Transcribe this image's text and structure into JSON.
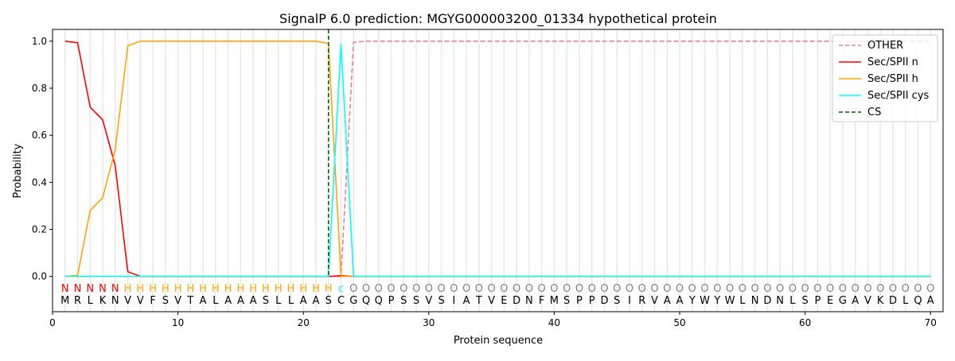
{
  "chart_data": {
    "type": "line",
    "title": "SignalP 6.0 prediction: MGYG000003200_01334 hypothetical protein",
    "xlabel": "Protein sequence",
    "ylabel": "Probability",
    "xlim": [
      0,
      71
    ],
    "ylim": [
      -0.15,
      1.05
    ],
    "xticks": [
      0,
      10,
      20,
      30,
      40,
      50,
      60,
      70
    ],
    "yticks": [
      0.0,
      0.2,
      0.4,
      0.6,
      0.8,
      1.0
    ],
    "ytick_labels": [
      "0.0",
      "0.2",
      "0.4",
      "0.6",
      "0.8",
      "1.0"
    ],
    "grid": "vertical lines at each residue",
    "legend_position": "top-right",
    "sequence": "MRLKNVVFSVTALAAASLLAASCGQQPSSVSIATVEDNFMSPPDSIRVAAYWYWLNDNLSPEGAVKDLQA",
    "region_labels": "NNNNNHHHHHHHHHHHHHHHHHCOOOOOOOOOOOOOOOOOOOOOOOOOOOOOOOOOOOOOOOOOOOOOOO",
    "region_colors": {
      "N": "#ff0000",
      "H": "#ffa500",
      "C": "#00ffff",
      "O": "#808080"
    },
    "cs_position": 22,
    "cs": {
      "name": "CS",
      "color": "#006400"
    },
    "series": [
      {
        "name": "OTHER",
        "color": "#f08080",
        "dash": true,
        "points": [
          [
            1,
            0
          ],
          [
            22,
            0
          ],
          [
            23,
            0.0
          ],
          [
            24,
            0.995
          ],
          [
            25,
            1.0
          ],
          [
            70,
            1.0
          ]
        ]
      },
      {
        "name": "Sec/SPII n",
        "color": "#ff0000",
        "dash": false,
        "points": [
          [
            1,
            1.0
          ],
          [
            2,
            0.993
          ],
          [
            3,
            0.72
          ],
          [
            4,
            0.665
          ],
          [
            5,
            0.47
          ],
          [
            6,
            0.02
          ],
          [
            7,
            0.0
          ],
          [
            22,
            0.0
          ],
          [
            23,
            0.003
          ],
          [
            24,
            0
          ],
          [
            70,
            0
          ]
        ]
      },
      {
        "name": "Sec/SPII h",
        "color": "#ffa500",
        "dash": false,
        "points": [
          [
            1,
            0
          ],
          [
            2,
            0.005
          ],
          [
            3,
            0.28
          ],
          [
            4,
            0.335
          ],
          [
            5,
            0.54
          ],
          [
            6,
            0.98
          ],
          [
            7,
            1.0
          ],
          [
            21,
            1.0
          ],
          [
            22,
            0.99
          ],
          [
            23,
            0.0
          ],
          [
            24,
            0
          ],
          [
            70,
            0
          ]
        ]
      },
      {
        "name": "Sec/SPII cys",
        "color": "#00ffff",
        "dash": false,
        "points": [
          [
            1,
            0
          ],
          [
            22,
            0.0
          ],
          [
            23,
            0.99
          ],
          [
            24,
            0.0
          ],
          [
            70,
            0
          ]
        ]
      }
    ]
  }
}
